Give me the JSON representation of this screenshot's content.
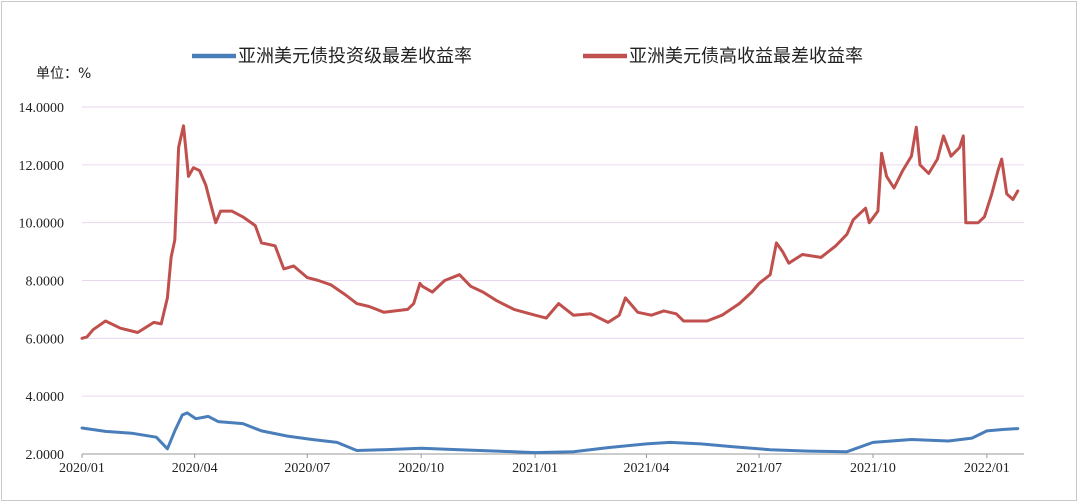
{
  "chart_data": {
    "type": "line",
    "unit_label": "单位：%",
    "legend_position": "top",
    "grid": "horizontal",
    "ylim": [
      2,
      14
    ],
    "y_ticks": [
      "2.0000",
      "4.0000",
      "6.0000",
      "8.0000",
      "10.0000",
      "12.0000",
      "14.0000"
    ],
    "x_ticks": [
      "2020/01",
      "2020/04",
      "2020/07",
      "2020/10",
      "2021/01",
      "2021/04",
      "2021/07",
      "2021/10",
      "2022/01"
    ],
    "xlim": [
      "2020-01-01",
      "2022-01-31"
    ],
    "series": [
      {
        "name": "亚洲美元债投资级最差收益率",
        "color": "#4a7ebb",
        "points": [
          [
            "2020-01-01",
            2.9
          ],
          [
            "2020-01-20",
            2.78
          ],
          [
            "2020-02-10",
            2.72
          ],
          [
            "2020-03-01",
            2.58
          ],
          [
            "2020-03-10",
            2.18
          ],
          [
            "2020-03-16",
            2.8
          ],
          [
            "2020-03-22",
            3.35
          ],
          [
            "2020-03-26",
            3.42
          ],
          [
            "2020-04-02",
            3.22
          ],
          [
            "2020-04-12",
            3.3
          ],
          [
            "2020-04-20",
            3.12
          ],
          [
            "2020-05-10",
            3.05
          ],
          [
            "2020-05-25",
            2.8
          ],
          [
            "2020-06-15",
            2.62
          ],
          [
            "2020-07-05",
            2.5
          ],
          [
            "2020-07-25",
            2.4
          ],
          [
            "2020-08-10",
            2.12
          ],
          [
            "2020-09-01",
            2.15
          ],
          [
            "2020-10-01",
            2.2
          ],
          [
            "2020-11-01",
            2.15
          ],
          [
            "2020-12-01",
            2.1
          ],
          [
            "2021-01-01",
            2.05
          ],
          [
            "2021-02-01",
            2.08
          ],
          [
            "2021-03-01",
            2.22
          ],
          [
            "2021-04-01",
            2.35
          ],
          [
            "2021-04-20",
            2.4
          ],
          [
            "2021-05-15",
            2.35
          ],
          [
            "2021-06-10",
            2.25
          ],
          [
            "2021-07-10",
            2.15
          ],
          [
            "2021-08-10",
            2.1
          ],
          [
            "2021-09-10",
            2.08
          ],
          [
            "2021-10-01",
            2.4
          ],
          [
            "2021-11-01",
            2.5
          ],
          [
            "2021-12-01",
            2.45
          ],
          [
            "2021-12-20",
            2.55
          ],
          [
            "2022-01-01",
            2.8
          ],
          [
            "2022-01-15",
            2.85
          ],
          [
            "2022-01-26",
            2.88
          ]
        ]
      },
      {
        "name": "亚洲美元债高收益最差收益率",
        "color": "#c0504d",
        "points": [
          [
            "2020-01-01",
            6.0
          ],
          [
            "2020-01-05",
            6.05
          ],
          [
            "2020-01-10",
            6.3
          ],
          [
            "2020-01-20",
            6.6
          ],
          [
            "2020-02-01",
            6.35
          ],
          [
            "2020-02-15",
            6.2
          ],
          [
            "2020-02-28",
            6.55
          ],
          [
            "2020-03-05",
            6.5
          ],
          [
            "2020-03-10",
            7.4
          ],
          [
            "2020-03-13",
            8.8
          ],
          [
            "2020-03-16",
            9.4
          ],
          [
            "2020-03-19",
            12.6
          ],
          [
            "2020-03-23",
            13.35
          ],
          [
            "2020-03-27",
            11.6
          ],
          [
            "2020-03-31",
            11.9
          ],
          [
            "2020-04-05",
            11.8
          ],
          [
            "2020-04-10",
            11.3
          ],
          [
            "2020-04-13",
            10.8
          ],
          [
            "2020-04-18",
            10.0
          ],
          [
            "2020-04-22",
            10.4
          ],
          [
            "2020-05-01",
            10.4
          ],
          [
            "2020-05-10",
            10.2
          ],
          [
            "2020-05-20",
            9.9
          ],
          [
            "2020-05-25",
            9.3
          ],
          [
            "2020-06-05",
            9.2
          ],
          [
            "2020-06-12",
            8.4
          ],
          [
            "2020-06-20",
            8.5
          ],
          [
            "2020-07-01",
            8.1
          ],
          [
            "2020-07-10",
            8.0
          ],
          [
            "2020-07-20",
            7.85
          ],
          [
            "2020-08-01",
            7.5
          ],
          [
            "2020-08-10",
            7.2
          ],
          [
            "2020-08-20",
            7.1
          ],
          [
            "2020-09-01",
            6.9
          ],
          [
            "2020-09-20",
            7.0
          ],
          [
            "2020-09-25",
            7.2
          ],
          [
            "2020-09-30",
            7.9
          ],
          [
            "2020-10-02",
            7.8
          ],
          [
            "2020-10-10",
            7.6
          ],
          [
            "2020-10-20",
            8.0
          ],
          [
            "2020-11-01",
            8.2
          ],
          [
            "2020-11-10",
            7.8
          ],
          [
            "2020-11-20",
            7.6
          ],
          [
            "2020-12-01",
            7.3
          ],
          [
            "2020-12-15",
            7.0
          ],
          [
            "2021-01-01",
            6.8
          ],
          [
            "2021-01-10",
            6.7
          ],
          [
            "2021-01-20",
            7.2
          ],
          [
            "2021-02-01",
            6.8
          ],
          [
            "2021-02-15",
            6.85
          ],
          [
            "2021-03-01",
            6.55
          ],
          [
            "2021-03-10",
            6.8
          ],
          [
            "2021-03-15",
            7.4
          ],
          [
            "2021-03-25",
            6.9
          ],
          [
            "2021-04-05",
            6.8
          ],
          [
            "2021-04-15",
            6.95
          ],
          [
            "2021-04-25",
            6.85
          ],
          [
            "2021-05-01",
            6.6
          ],
          [
            "2021-05-20",
            6.6
          ],
          [
            "2021-06-01",
            6.8
          ],
          [
            "2021-06-15",
            7.2
          ],
          [
            "2021-06-25",
            7.6
          ],
          [
            "2021-07-01",
            7.9
          ],
          [
            "2021-07-10",
            8.2
          ],
          [
            "2021-07-15",
            9.3
          ],
          [
            "2021-07-20",
            9.0
          ],
          [
            "2021-07-25",
            8.6
          ],
          [
            "2021-08-05",
            8.9
          ],
          [
            "2021-08-20",
            8.8
          ],
          [
            "2021-09-01",
            9.2
          ],
          [
            "2021-09-10",
            9.6
          ],
          [
            "2021-09-15",
            10.1
          ],
          [
            "2021-09-25",
            10.5
          ],
          [
            "2021-09-28",
            10.0
          ],
          [
            "2021-10-05",
            10.4
          ],
          [
            "2021-10-08",
            12.4
          ],
          [
            "2021-10-12",
            11.6
          ],
          [
            "2021-10-18",
            11.2
          ],
          [
            "2021-10-25",
            11.8
          ],
          [
            "2021-11-01",
            12.3
          ],
          [
            "2021-11-05",
            13.3
          ],
          [
            "2021-11-08",
            12.0
          ],
          [
            "2021-11-15",
            11.7
          ],
          [
            "2021-11-22",
            12.2
          ],
          [
            "2021-11-27",
            13.0
          ],
          [
            "2021-12-03",
            12.3
          ],
          [
            "2021-12-10",
            12.6
          ],
          [
            "2021-12-13",
            13.0
          ],
          [
            "2021-12-15",
            10.0
          ],
          [
            "2021-12-25",
            10.0
          ],
          [
            "2021-12-30",
            10.2
          ],
          [
            "2022-01-05",
            11.0
          ],
          [
            "2022-01-10",
            11.8
          ],
          [
            "2022-01-13",
            12.2
          ],
          [
            "2022-01-17",
            11.0
          ],
          [
            "2022-01-22",
            10.8
          ],
          [
            "2022-01-26",
            11.1
          ]
        ]
      }
    ]
  }
}
